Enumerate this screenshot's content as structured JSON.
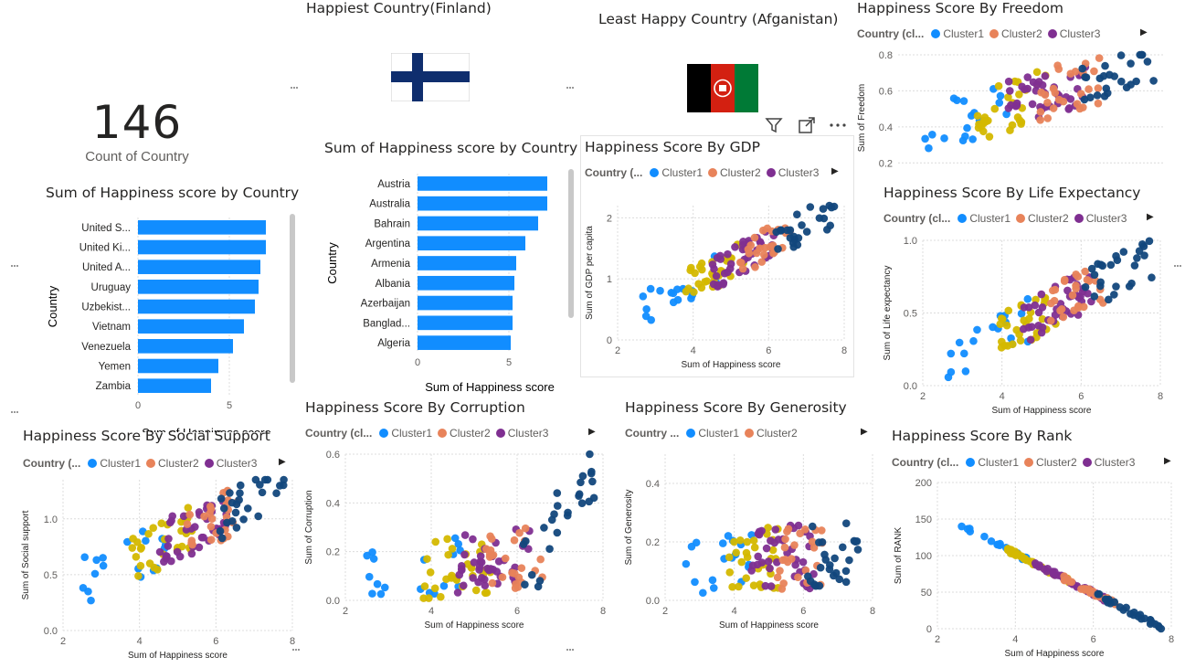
{
  "card": {
    "value": "146",
    "label": "Count of Country"
  },
  "happiest_title": "Happiest Country(Finland)",
  "least_title": "Least Happy Country (Afganistan)",
  "colors": {
    "bar": "#118DFF",
    "cluster1": "#118DFF",
    "cluster2": "#E8835A",
    "cluster3": "#7F2F91",
    "cluster4": "#D4B800",
    "cluster5": "#12477C",
    "grid": "#dcdcdc"
  },
  "chart_data": [
    {
      "id": "bar_left",
      "type": "bar",
      "orientation": "horizontal",
      "title": "Sum of Happiness score by Country",
      "ylabel": "Country",
      "xlabel": "Sum of Happiness score",
      "categories": [
        "United S...",
        "United Ki...",
        "United A...",
        "Uruguay",
        "Uzbekist...",
        "Vietnam",
        "Venezuela",
        "Yemen",
        "Zambia"
      ],
      "values": [
        7.0,
        7.0,
        6.7,
        6.6,
        6.4,
        5.8,
        5.2,
        4.4,
        4.0
      ],
      "xticks": [
        0,
        5
      ],
      "xlim": [
        0,
        7.5
      ]
    },
    {
      "id": "bar_mid",
      "type": "bar",
      "orientation": "horizontal",
      "title": "Sum of Happiness score by Country",
      "ylabel": "Country",
      "xlabel": "Sum of Happiness score",
      "categories": [
        "Austria",
        "Australia",
        "Bahrain",
        "Argentina",
        "Armenia",
        "Albania",
        "Azerbaijan",
        "Banglad...",
        "Algeria"
      ],
      "values": [
        7.1,
        7.1,
        6.6,
        5.9,
        5.4,
        5.3,
        5.2,
        5.2,
        5.1
      ],
      "xticks": [
        0,
        5
      ],
      "xlim": [
        0,
        7.5
      ]
    },
    {
      "id": "gdp",
      "type": "scatter",
      "title": "Happiness Score By GDP",
      "legend_title": "Country (...",
      "legend": [
        "Cluster1",
        "Cluster2",
        "Cluster3"
      ],
      "xlabel": "Sum of Happiness score",
      "ylabel": "Sum of GDP per capita",
      "xlim": [
        2,
        8
      ],
      "ylim": [
        0,
        2.2
      ],
      "xticks": [
        2,
        4,
        6,
        8
      ],
      "yticks": [
        0,
        1,
        2
      ]
    },
    {
      "id": "freedom",
      "type": "scatter",
      "title": "Happiness Score By Freedom",
      "legend_title": "Country (cl...",
      "legend": [
        "Cluster1",
        "Cluster2",
        "Cluster3"
      ],
      "ylabel": "Sum of Freedom",
      "xlim": [
        2,
        8
      ],
      "ylim": [
        0.1,
        0.8
      ],
      "yticks": [
        0.2,
        0.4,
        0.6,
        0.8
      ]
    },
    {
      "id": "life",
      "type": "scatter",
      "title": "Happiness Score By Life Expectancy",
      "legend_title": "Country (cl...",
      "legend": [
        "Cluster1",
        "Cluster2",
        "Cluster3"
      ],
      "xlabel": "Sum of Happiness score",
      "ylabel": "Sum of Life expectancy",
      "xlim": [
        2,
        8
      ],
      "ylim": [
        0,
        1.0
      ],
      "xticks": [
        2,
        4,
        6,
        8
      ],
      "yticks": [
        0.0,
        0.5,
        1.0
      ]
    },
    {
      "id": "social",
      "type": "scatter",
      "title": "Happiness Score By Social Support",
      "legend_title": "Country (...",
      "legend": [
        "Cluster1",
        "Cluster2",
        "Cluster3"
      ],
      "xlabel": "Sum of Happiness score",
      "ylabel": "Sum of Social support",
      "xlim": [
        2,
        8
      ],
      "ylim": [
        0,
        1.35
      ],
      "xticks": [
        2,
        4,
        6,
        8
      ],
      "yticks": [
        0.0,
        0.5,
        1.0
      ]
    },
    {
      "id": "corruption",
      "type": "scatter",
      "title": "Happiness Score By Corruption",
      "legend_title": "Country (cl...",
      "legend": [
        "Cluster1",
        "Cluster2",
        "Cluster3"
      ],
      "xlabel": "Sum of Happiness score",
      "ylabel": "Sum of Corruption",
      "xlim": [
        2,
        8
      ],
      "ylim": [
        0,
        0.6
      ],
      "xticks": [
        2,
        4,
        6,
        8
      ],
      "yticks": [
        0.0,
        0.2,
        0.4,
        0.6
      ]
    },
    {
      "id": "generosity",
      "type": "scatter",
      "title": "Happiness Score By Generosity",
      "legend_title": "Country ...",
      "legend": [
        "Cluster1",
        "Cluster2"
      ],
      "xlabel": "Sum of Happiness score",
      "ylabel": "Sum of Generosity",
      "xlim": [
        2,
        8
      ],
      "ylim": [
        0,
        0.5
      ],
      "xticks": [
        2,
        4,
        6,
        8
      ],
      "yticks": [
        0.0,
        0.2,
        0.4
      ]
    },
    {
      "id": "rank",
      "type": "scatter",
      "title": "Happiness Score By Rank",
      "legend_title": "Country (cl...",
      "legend": [
        "Cluster1",
        "Cluster2",
        "Cluster3"
      ],
      "xlabel": "Sum of Happiness score",
      "ylabel": "Sum of RANK",
      "xlim": [
        2,
        8
      ],
      "ylim": [
        0,
        200
      ],
      "xticks": [
        2,
        4,
        6,
        8
      ],
      "yticks": [
        0,
        50,
        100,
        150,
        200
      ]
    }
  ]
}
